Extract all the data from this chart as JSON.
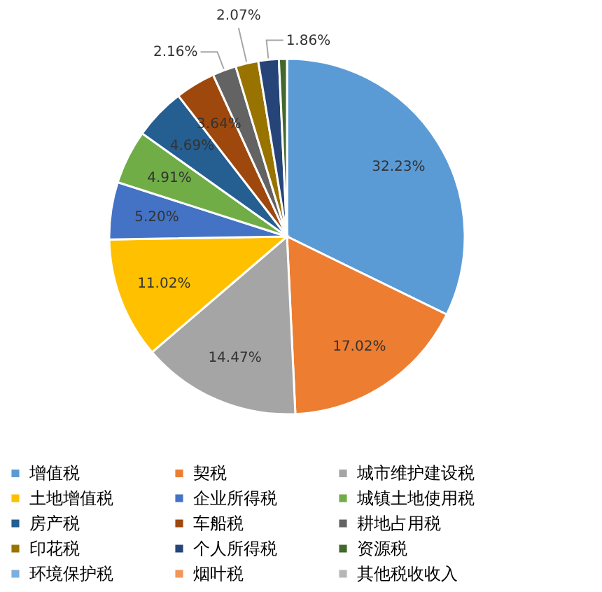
{
  "chart_data": {
    "type": "pie",
    "categories": [
      "增值税",
      "契税",
      "城市维护建设税",
      "土地增值税",
      "企业所得税",
      "城镇土地使用税",
      "房产税",
      "车船税",
      "耕地占用税",
      "印花税",
      "个人所得税",
      "资源税",
      "环境保护税",
      "烟叶税",
      "其他税收收入"
    ],
    "values": [
      32.23,
      17.02,
      14.47,
      11.02,
      5.2,
      4.91,
      4.69,
      3.64,
      2.16,
      2.07,
      1.86,
      0.73,
      null,
      null,
      null
    ],
    "value_labels": [
      "32.23%",
      "17.02%",
      "14.47%",
      "11.02%",
      "5.20%",
      "4.91%",
      "4.69%",
      "3.64%",
      "2.16%",
      "2.07%",
      "1.86%",
      null,
      null,
      null,
      null
    ],
    "colors": [
      "#5b9bd5",
      "#ed7d31",
      "#a5a5a5",
      "#ffc000",
      "#4472c4",
      "#70ad47",
      "#255e91",
      "#9e480e",
      "#636363",
      "#997300",
      "#264478",
      "#43682b",
      "#7cafdd",
      "#f1975a",
      "#b7b7b7"
    ],
    "legend": "bottom"
  }
}
